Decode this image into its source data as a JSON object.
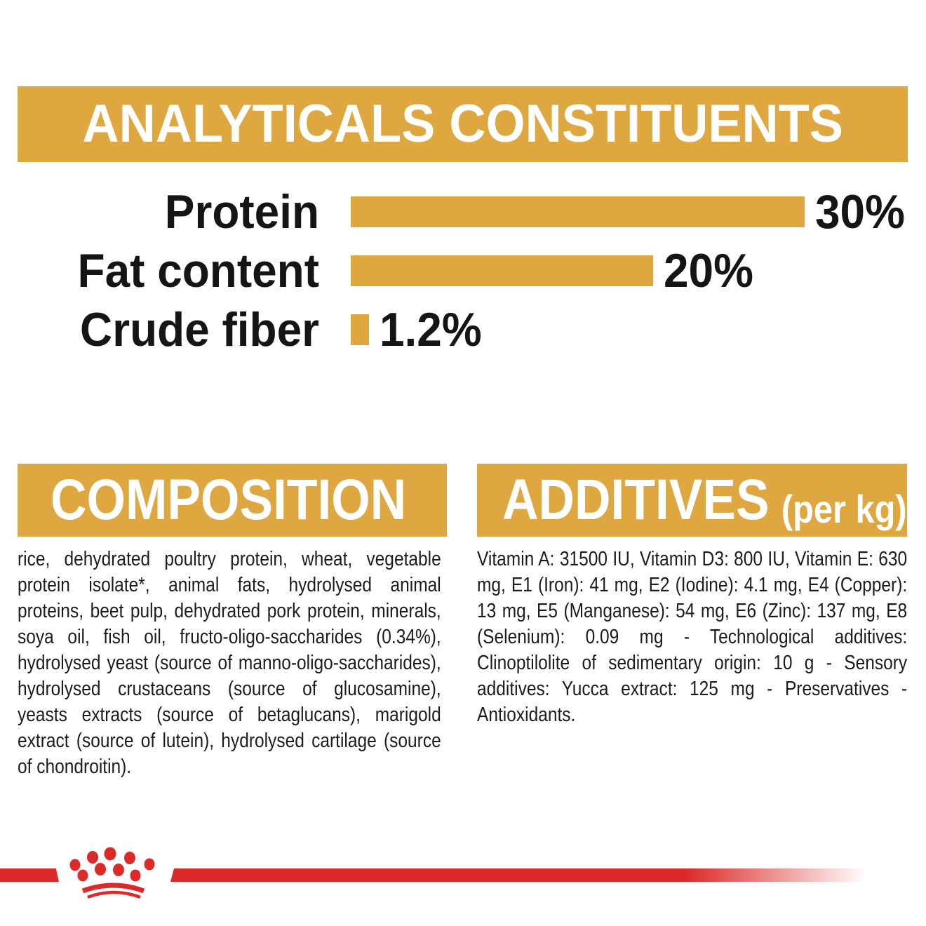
{
  "colors": {
    "gold": "#DFA73F",
    "red": "#DB2A28",
    "ink": "#1C1C1B",
    "heading_text": "#FFFFFF"
  },
  "analyticals": {
    "title": "ANALYTICALS CONSTITUENTS",
    "rows": [
      {
        "label": "Protein",
        "value": "30%",
        "percent": 30
      },
      {
        "label": "Fat content",
        "value": "20%",
        "percent": 20
      },
      {
        "label": "Crude fiber",
        "value": "1.2%",
        "percent": 1.2
      }
    ]
  },
  "chart_data": {
    "type": "bar",
    "orientation": "horizontal",
    "title": "ANALYTICALS CONSTITUENTS",
    "categories": [
      "Protein",
      "Fat content",
      "Crude fiber"
    ],
    "values": [
      30,
      20,
      1.2
    ],
    "value_labels": [
      "30%",
      "20%",
      "1.2%"
    ],
    "xlim": [
      0,
      30
    ],
    "bar_color": "#DFA73F",
    "grid": false,
    "legend": false
  },
  "composition": {
    "title": "COMPOSITION",
    "body": "rice, dehydrated poultry protein, wheat, vegetable protein isolate*, animal fats, hydrolysed animal proteins, beet pulp, dehydrated pork protein, minerals, soya oil, fish oil, fructo-oligo-saccharides (0.34%), hydrolysed yeast (source of manno-oligo-saccharides), hydrolysed crustaceans (source of glucosamine), yeasts extracts (source of betaglucans), marigold extract (source of lutein), hydrolysed cartilage (source of chondroitin)."
  },
  "additives": {
    "title": "ADDITIVES",
    "unit_note": "(per kg)",
    "body": "Vitamin A: 31500 IU, Vitamin D3: 800 IU, Vitamin E: 630 mg, E1 (Iron): 41 mg, E2 (Iodine): 4.1 mg, E4 (Copper): 13 mg, E5 (Manganese): 54 mg, E6 (Zinc): 137 mg, E8 (Selenium): 0.09 mg - Technological additives: Clinoptilolite of sedimentary origin: 10 g - Sensory additives: Yucca extract: 125 mg - Preservatives - Antioxidants."
  },
  "footer": {
    "logo": "royal-canin-crown"
  }
}
